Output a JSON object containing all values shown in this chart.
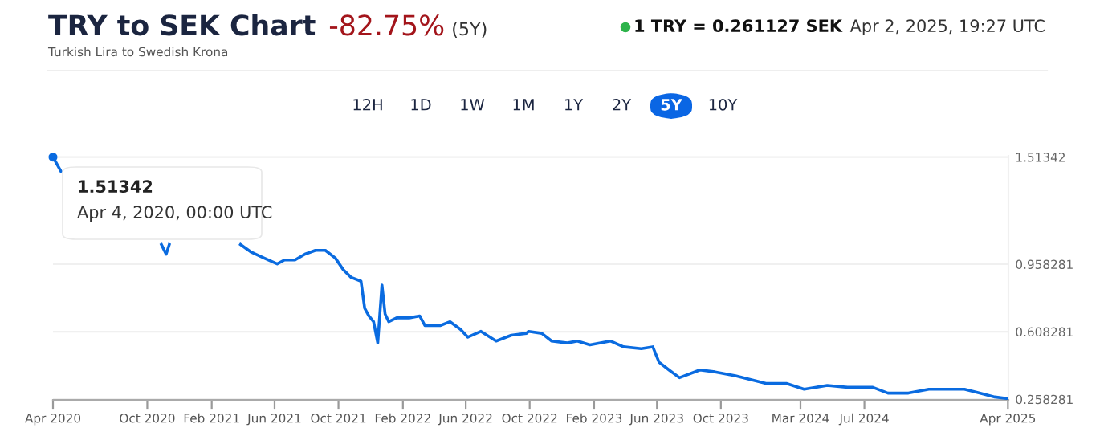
{
  "chart_data": {
    "type": "line",
    "title": "TRY to SEK Chart",
    "subtitle": "Turkish Lira to Swedish Krona",
    "annotations": [
      "-82.75%",
      "(5Y)",
      "1 TRY = 0.261127 SEK",
      "Apr 2, 2025, 19:27 UTC",
      "12H",
      "1D",
      "1W",
      "1M",
      "1Y",
      "2Y",
      "5Y",
      "10Y",
      {
        "text": "1.51342\nApr 4, 2020, 00:00 UTC",
        "x": "2020-04-04",
        "y": 1.51342
      }
    ],
    "series": [
      {
        "color": "#0a6be0",
        "x": [
          "2020-04-04",
          "2020-04-19",
          "2020-05-10",
          "2020-10-28",
          "2020-11-06",
          "2020-11-12",
          "2021-03-10",
          "2021-03-28",
          "2021-04-18",
          "2021-05-12",
          "2021-06-06",
          "2021-06-20",
          "2021-07-10",
          "2021-07-29",
          "2021-08-18",
          "2021-09-06",
          "2021-09-25",
          "2021-10-10",
          "2021-10-25",
          "2021-11-13",
          "2021-11-20",
          "2021-11-28",
          "2021-12-07",
          "2021-12-15",
          "2021-12-23",
          "2021-12-29",
          "2022-01-05",
          "2022-01-20",
          "2022-02-13",
          "2022-03-05",
          "2022-03-15",
          "2022-04-13",
          "2022-05-02",
          "2022-05-22",
          "2022-06-05",
          "2022-06-30",
          "2022-07-29",
          "2022-08-27",
          "2022-09-25",
          "2022-09-29",
          "2022-10-24",
          "2022-11-12",
          "2022-12-12",
          "2022-12-31",
          "2023-01-24",
          "2023-03-04",
          "2023-03-29",
          "2023-05-02",
          "2023-05-24",
          "2023-06-05",
          "2023-06-24",
          "2023-07-14",
          "2023-08-22",
          "2023-09-20",
          "2023-10-29",
          "2023-11-27",
          "2023-12-26",
          "2024-02-03",
          "2024-03-08",
          "2024-04-21",
          "2024-05-30",
          "2024-07-17",
          "2024-08-15",
          "2024-09-23",
          "2024-11-01",
          "2025-01-08",
          "2025-02-06",
          "2025-03-07",
          "2025-04-02"
        ],
        "values": [
          1.51342,
          1.44,
          null,
          1.06,
          1.01,
          1.06,
          null,
          1.06,
          1.02,
          0.99,
          0.96,
          0.98,
          0.98,
          1.01,
          1.03,
          1.03,
          0.99,
          0.93,
          0.89,
          0.87,
          0.73,
          0.69,
          0.66,
          0.55,
          0.85,
          0.7,
          0.66,
          0.68,
          0.68,
          0.69,
          0.64,
          0.64,
          0.66,
          0.62,
          0.58,
          0.61,
          0.56,
          0.59,
          0.6,
          0.61,
          0.6,
          0.56,
          0.55,
          0.56,
          0.54,
          0.56,
          0.53,
          0.52,
          0.53,
          0.45,
          0.41,
          0.37,
          0.41,
          0.4,
          0.38,
          0.36,
          0.34,
          0.34,
          0.31,
          0.33,
          0.32,
          0.32,
          0.29,
          0.29,
          0.31,
          0.31,
          0.29,
          0.27,
          0.261127
        ]
      }
    ],
    "xlim": [
      "2020-04-04",
      "2025-04-02"
    ],
    "xticks": [
      {
        "value": "2020-04-04",
        "label": "Apr 2020"
      },
      {
        "value": "2020-10-01",
        "label": "Oct 2020"
      },
      {
        "value": "2021-02-01",
        "label": "Feb 2021"
      },
      {
        "value": "2021-06-01",
        "label": "Jun 2021"
      },
      {
        "value": "2021-10-01",
        "label": "Oct 2021"
      },
      {
        "value": "2022-02-01",
        "label": "Feb 2022"
      },
      {
        "value": "2022-06-01",
        "label": "Jun 2022"
      },
      {
        "value": "2022-10-01",
        "label": "Oct 2022"
      },
      {
        "value": "2023-02-01",
        "label": "Feb 2023"
      },
      {
        "value": "2023-06-01",
        "label": "Jun 2023"
      },
      {
        "value": "2023-10-01",
        "label": "Oct 2023"
      },
      {
        "value": "2024-03-01",
        "label": "Mar 2024"
      },
      {
        "value": "2024-07-01",
        "label": "Jul 2024"
      },
      {
        "value": "2025-04-01",
        "label": "Apr 2025"
      }
    ],
    "ylim": [
      0.255,
      1.52
    ],
    "yticks": [
      0.258281,
      0.608281,
      0.958281,
      1.51342
    ],
    "grid": "y",
    "marker": "none",
    "line_style": "solid",
    "legend": false
  }
}
